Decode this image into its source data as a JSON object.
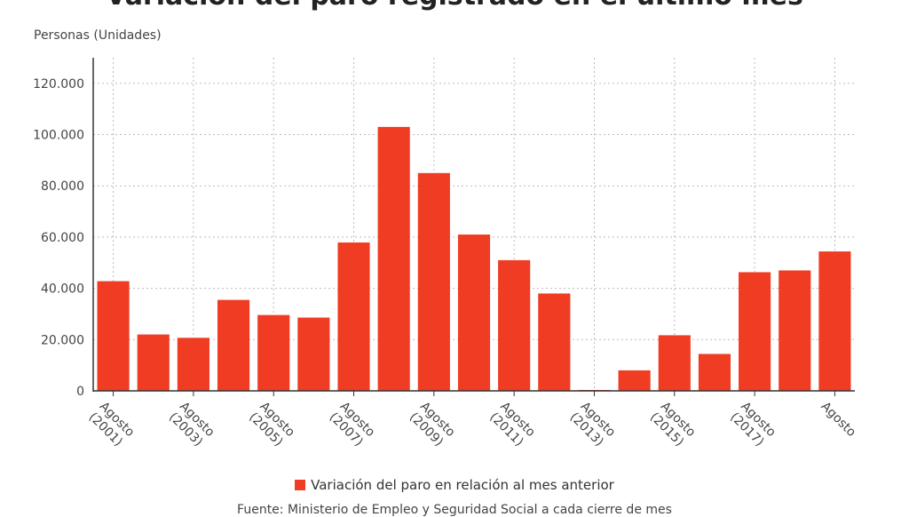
{
  "chart_data": {
    "type": "bar",
    "title": "Variación del paro registrado en el último mes",
    "ylabel": "Personas (Unidades)",
    "categories": [
      "Agosto (2001)",
      "",
      "Agosto (2003)",
      "",
      "Agosto (2005)",
      "",
      "Agosto (2007)",
      "",
      "Agosto (2009)",
      "",
      "Agosto (2011)",
      "",
      "Agosto (2013)",
      "",
      "Agosto (2015)",
      "",
      "Agosto (2017)",
      "",
      "Agosto"
    ],
    "series": [
      {
        "name": "Variación del paro en relación al mes anterior",
        "color": "#f03c23",
        "values": [
          42800,
          22000,
          20700,
          35500,
          29600,
          28600,
          57900,
          103000,
          85000,
          61000,
          51000,
          38000,
          0,
          8000,
          21700,
          14400,
          46300,
          47000,
          54400
        ]
      }
    ],
    "yticks": [
      "0",
      "20.000",
      "40.000",
      "60.000",
      "80.000",
      "100.000",
      "120.000"
    ],
    "ylim": [
      0,
      130000
    ],
    "grid": true,
    "legend_position": "bottom",
    "source": "Fuente: Ministerio de Empleo y Seguridad Social a cada cierre de mes"
  }
}
